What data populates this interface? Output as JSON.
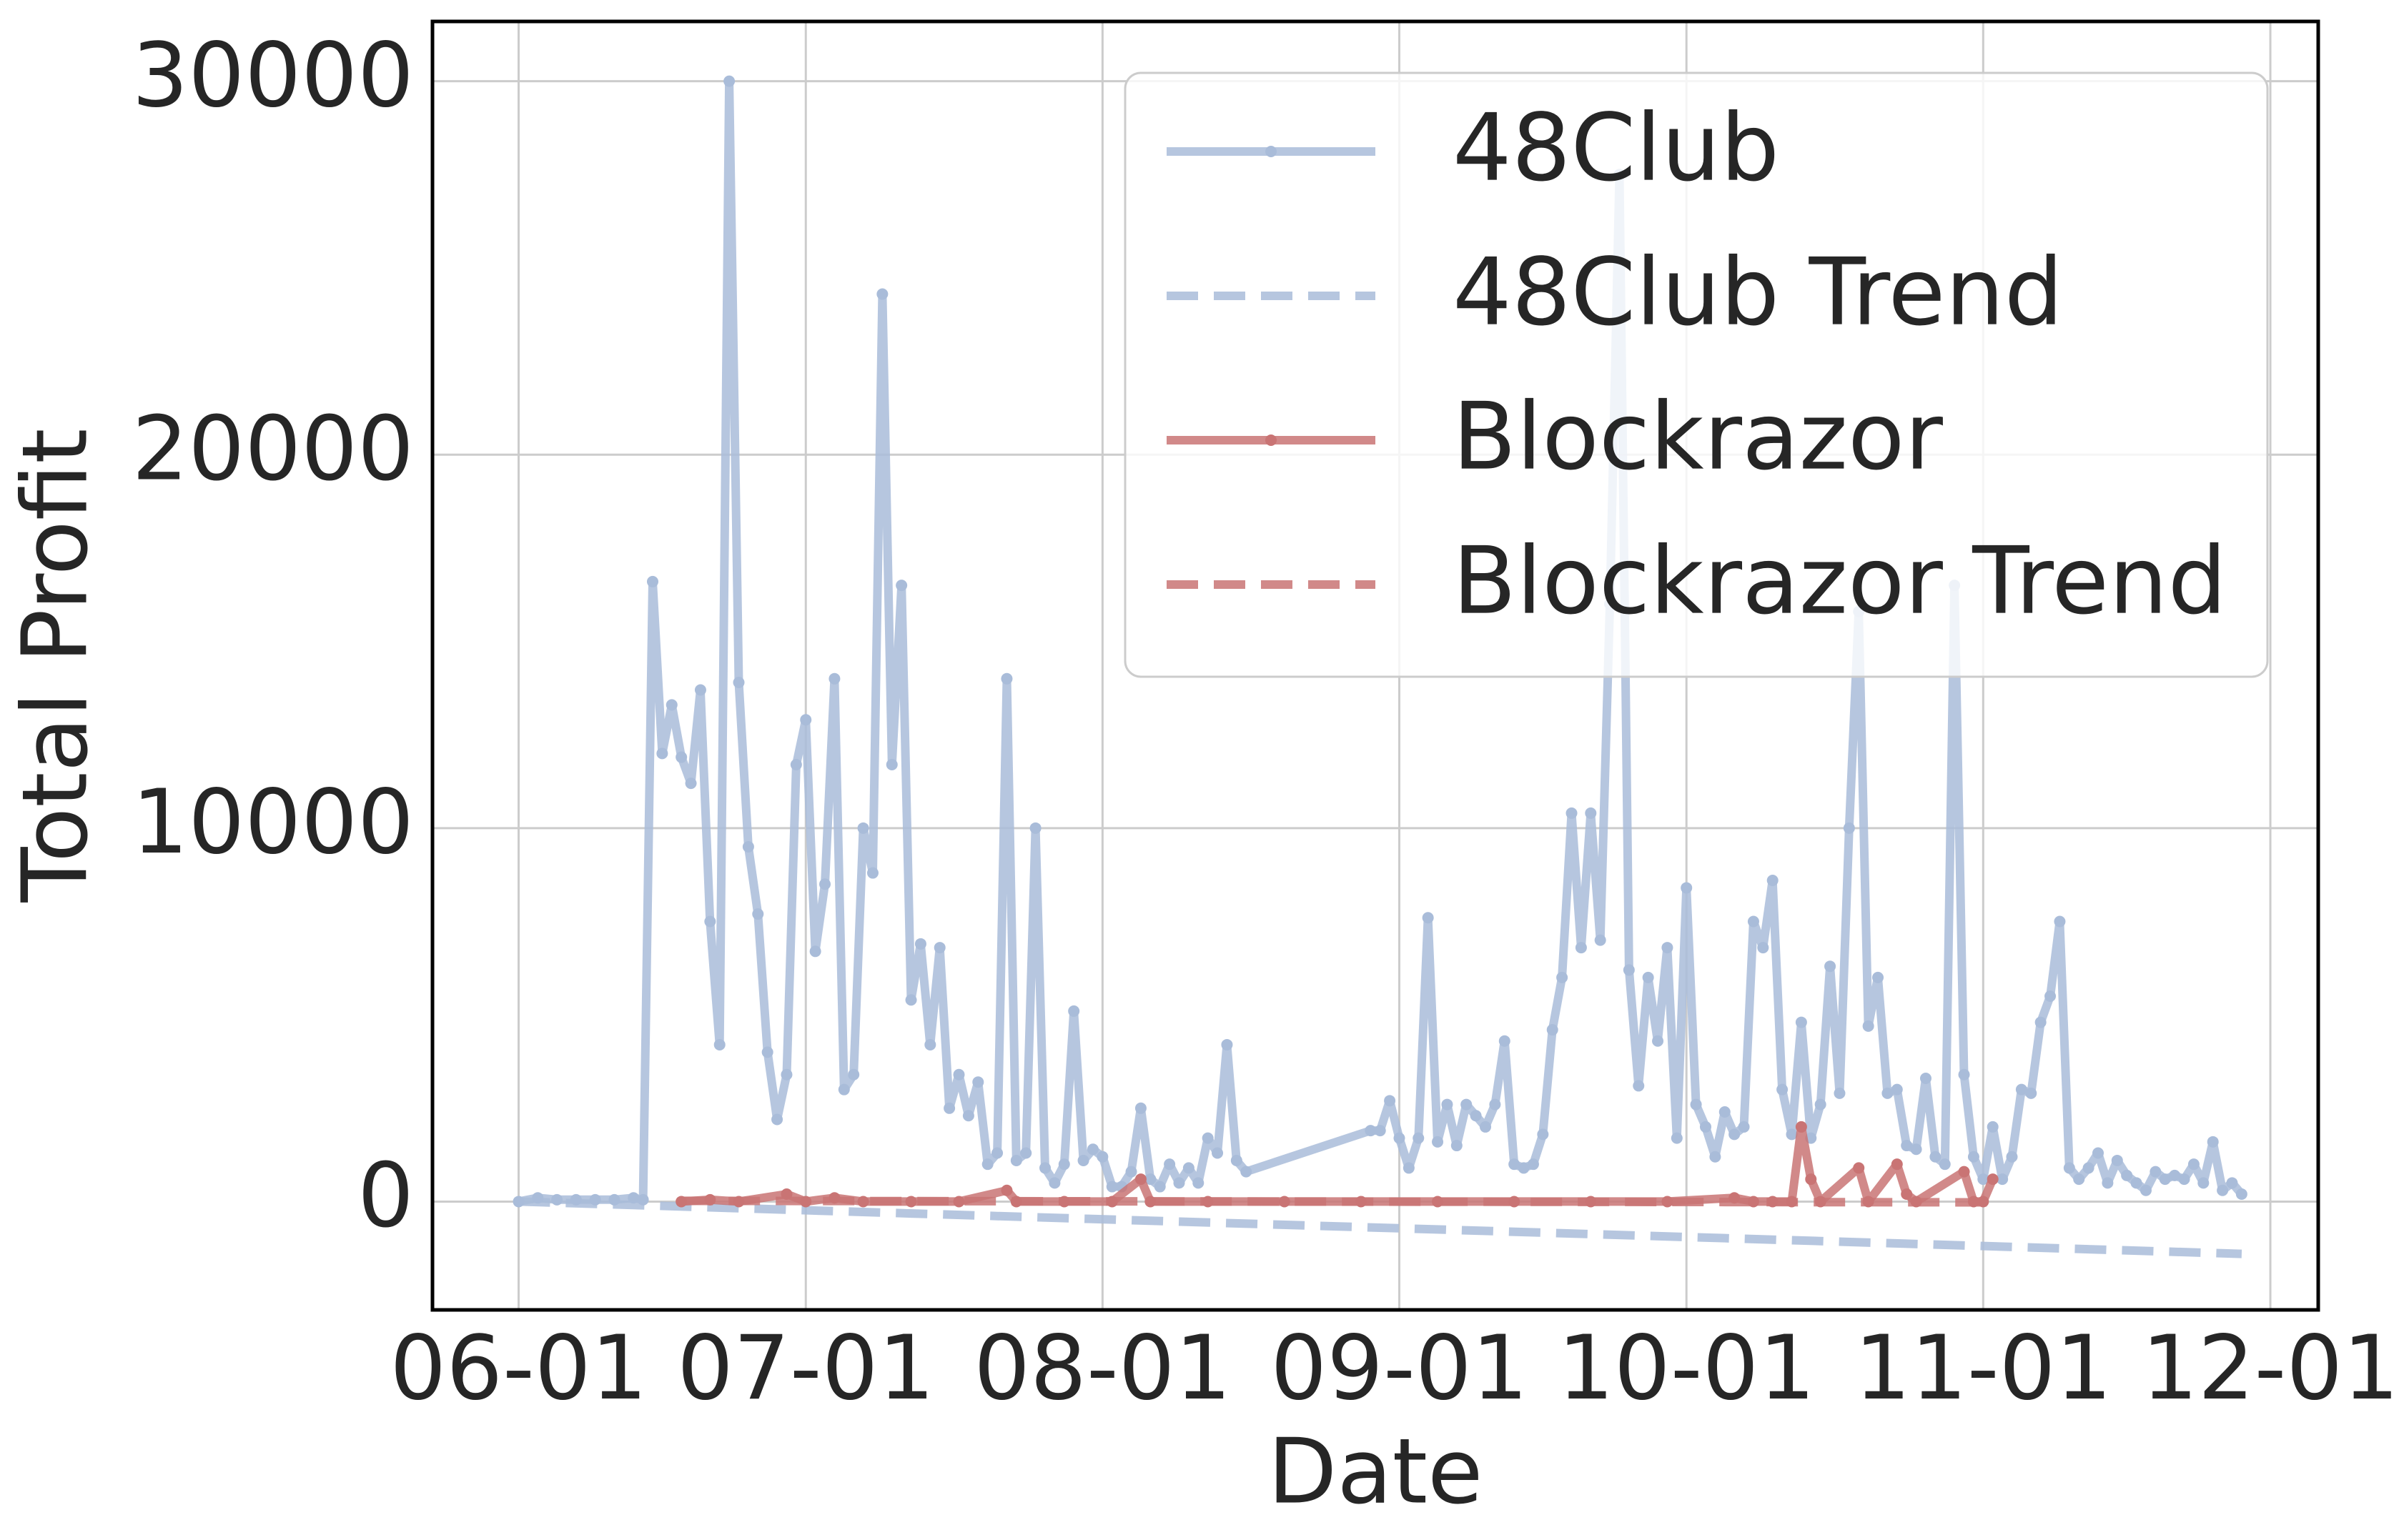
{
  "chart_data": {
    "type": "line",
    "xlabel": "Date",
    "ylabel": "Total Profit",
    "xlim": [
      "05-23",
      "12-06"
    ],
    "ylim": [
      -2900,
      31600
    ],
    "xticks": [
      "06-01",
      "07-01",
      "08-01",
      "09-01",
      "10-01",
      "11-01",
      "12-01"
    ],
    "yticks": [
      0,
      10000,
      20000,
      30000
    ],
    "grid": true,
    "legend": "upper right",
    "series": [
      {
        "name": "48Club",
        "color": "#a9bcd9",
        "linestyle": "solid",
        "marker": true,
        "x": [
          "06-01",
          "06-03",
          "06-05",
          "06-07",
          "06-09",
          "06-11",
          "06-13",
          "06-14",
          "06-15",
          "06-16",
          "06-17",
          "06-18",
          "06-19",
          "06-20",
          "06-21",
          "06-22",
          "06-23",
          "06-24",
          "06-25",
          "06-26",
          "06-27",
          "06-28",
          "06-29",
          "06-30",
          "07-01",
          "07-02",
          "07-03",
          "07-04",
          "07-05",
          "07-06",
          "07-07",
          "07-08",
          "07-09",
          "07-10",
          "07-11",
          "07-12",
          "07-13",
          "07-14",
          "07-15",
          "07-16",
          "07-17",
          "07-18",
          "07-19",
          "07-20",
          "07-21",
          "07-22",
          "07-23",
          "07-24",
          "07-25",
          "07-26",
          "07-27",
          "07-28",
          "07-29",
          "07-30",
          "07-31",
          "08-01",
          "08-02",
          "08-03",
          "08-04",
          "08-05",
          "08-06",
          "08-07",
          "08-08",
          "08-09",
          "08-10",
          "08-11",
          "08-12",
          "08-13",
          "08-14",
          "08-15",
          "08-16",
          "08-29",
          "08-30",
          "08-31",
          "09-01",
          "09-02",
          "09-03",
          "09-04",
          "09-05",
          "09-06",
          "09-07",
          "09-08",
          "09-09",
          "09-10",
          "09-11",
          "09-12",
          "09-13",
          "09-14",
          "09-15",
          "09-16",
          "09-17",
          "09-18",
          "09-19",
          "09-20",
          "09-21",
          "09-22",
          "09-23",
          "09-24",
          "09-25",
          "09-26",
          "09-27",
          "09-28",
          "09-29",
          "09-30",
          "10-01",
          "10-02",
          "10-03",
          "10-04",
          "10-05",
          "10-06",
          "10-07",
          "10-08",
          "10-09",
          "10-10",
          "10-11",
          "10-12",
          "10-13",
          "10-14",
          "10-15",
          "10-16",
          "10-17",
          "10-18",
          "10-19",
          "10-20",
          "10-21",
          "10-22",
          "10-23",
          "10-24",
          "10-25",
          "10-26",
          "10-27",
          "10-28",
          "10-29",
          "10-30",
          "10-31",
          "11-01",
          "11-02",
          "11-03",
          "11-04",
          "11-05",
          "11-06",
          "11-07",
          "11-08",
          "11-09",
          "11-10",
          "11-11",
          "11-12",
          "11-13",
          "11-14",
          "11-15",
          "11-16",
          "11-17",
          "11-18",
          "11-19",
          "11-20",
          "11-21",
          "11-22",
          "11-23",
          "11-24",
          "11-25",
          "11-26",
          "11-27",
          "11-28"
        ],
        "values": [
          0,
          100,
          50,
          50,
          50,
          50,
          100,
          50,
          16600,
          12000,
          13300,
          11900,
          11200,
          13700,
          7500,
          4200,
          30000,
          13900,
          9500,
          7700,
          4000,
          2200,
          3400,
          11700,
          12900,
          6700,
          8500,
          14000,
          3000,
          3400,
          10000,
          8800,
          24300,
          11700,
          16500,
          5400,
          6900,
          4200,
          6800,
          2500,
          3400,
          2300,
          3200,
          1000,
          1300,
          14000,
          1100,
          1300,
          10000,
          900,
          500,
          1000,
          5100,
          1100,
          1400,
          1200,
          400,
          400,
          800,
          2500,
          600,
          400,
          1000,
          500,
          900,
          500,
          1700,
          1300,
          4200,
          1100,
          800,
          1900,
          1900,
          2700,
          1700,
          900,
          1700,
          7600,
          1600,
          2600,
          1500,
          2600,
          2300,
          2000,
          2600,
          4300,
          1000,
          900,
          1000,
          1800,
          4600,
          6000,
          10400,
          6800,
          10400,
          7000,
          16000,
          27500,
          6200,
          3100,
          6000,
          4300,
          6800,
          1700,
          8400,
          2600,
          2000,
          1200,
          2400,
          1800,
          2000,
          7500,
          6800,
          8600,
          3000,
          1800,
          4800,
          1700,
          2600,
          6300,
          2900,
          10000,
          15800,
          4700,
          6000,
          2900,
          3000,
          1500,
          1400,
          3300,
          1200,
          1000,
          16500,
          3400,
          1200,
          600,
          2000,
          600,
          1200,
          3000,
          2900,
          4800,
          5500,
          7500,
          900,
          600,
          900,
          1300,
          500,
          1100,
          700,
          500,
          300,
          800,
          600,
          700,
          600,
          1000,
          500,
          1600,
          300,
          500,
          200
        ]
      },
      {
        "name": "48Club Trend",
        "color": "#a9bcd9",
        "linestyle": "dashed",
        "marker": false,
        "x": [
          "06-01",
          "11-28"
        ],
        "values": [
          0,
          -1400
        ]
      },
      {
        "name": "Blockrazor",
        "color": "#c97474",
        "linestyle": "solid",
        "marker": true,
        "x": [
          "06-18",
          "06-21",
          "06-24",
          "06-29",
          "07-01",
          "07-04",
          "07-07",
          "07-12",
          "07-17",
          "07-22",
          "07-23",
          "07-28",
          "08-02",
          "08-05",
          "08-06",
          "08-12",
          "08-20",
          "08-28",
          "09-05",
          "09-13",
          "09-21",
          "09-29",
          "10-06",
          "10-08",
          "10-10",
          "10-12",
          "10-13",
          "10-14",
          "10-15",
          "10-19",
          "10-20",
          "10-23",
          "10-24",
          "10-25",
          "10-30",
          "10-31",
          "11-01",
          "11-02"
        ],
        "values": [
          0,
          50,
          0,
          200,
          0,
          100,
          0,
          0,
          0,
          300,
          0,
          0,
          0,
          600,
          0,
          0,
          0,
          0,
          0,
          0,
          0,
          0,
          100,
          0,
          0,
          0,
          2000,
          600,
          0,
          900,
          0,
          1000,
          200,
          0,
          800,
          0,
          0,
          600
        ]
      },
      {
        "name": "Blockrazor Trend",
        "color": "#c97474",
        "linestyle": "dashed",
        "marker": false,
        "x": [
          "06-18",
          "11-02"
        ],
        "values": [
          20,
          -20
        ]
      }
    ]
  }
}
